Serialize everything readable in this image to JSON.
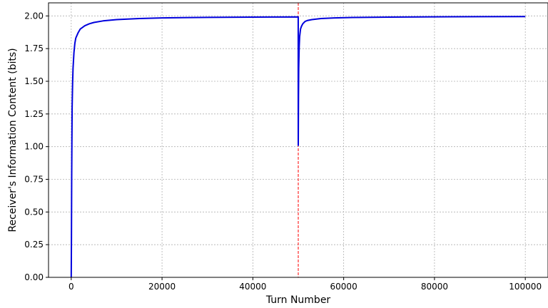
{
  "chart_data": {
    "type": "line",
    "xlabel": "Turn Number",
    "ylabel": "Receiver's Information Content (bits)",
    "xlim": [
      -5000,
      105000
    ],
    "ylim": [
      0.0,
      2.1
    ],
    "grid": true,
    "x_ticks": [
      0,
      20000,
      40000,
      60000,
      80000,
      100000
    ],
    "x_tick_labels": [
      "0",
      "20000",
      "40000",
      "60000",
      "80000",
      "100000"
    ],
    "y_ticks": [
      0.0,
      0.25,
      0.5,
      0.75,
      1.0,
      1.25,
      1.5,
      1.75,
      2.0
    ],
    "y_tick_labels": [
      "0.00",
      "0.25",
      "0.50",
      "0.75",
      "1.00",
      "1.25",
      "1.50",
      "1.75",
      "2.00"
    ],
    "series": [
      {
        "color": "#0000dd",
        "x": [
          0,
          50,
          100,
          150,
          200,
          300,
          400,
          600,
          800,
          1000,
          1500,
          2000,
          3000,
          4000,
          5000,
          7000,
          10000,
          15000,
          20000,
          30000,
          40000,
          49990,
          50000,
          50050,
          50100,
          50200,
          50300,
          50500,
          50700,
          51000,
          51500,
          52000,
          53000,
          55000,
          58000,
          62000,
          70000,
          80000,
          90000,
          100000
        ],
        "y": [
          0.0,
          0.3,
          0.75,
          1.05,
          1.3,
          1.48,
          1.6,
          1.72,
          1.79,
          1.83,
          1.87,
          1.9,
          1.925,
          1.94,
          1.95,
          1.962,
          1.972,
          1.98,
          1.985,
          1.989,
          1.991,
          1.992,
          1.01,
          1.38,
          1.6,
          1.76,
          1.84,
          1.9,
          1.92,
          1.94,
          1.958,
          1.965,
          1.972,
          1.98,
          1.985,
          1.988,
          1.991,
          1.993,
          1.994,
          1.995
        ]
      }
    ],
    "annotations": [
      {
        "type": "vline",
        "x": 50000,
        "color": "#ff0000",
        "style": "dashed"
      }
    ]
  }
}
